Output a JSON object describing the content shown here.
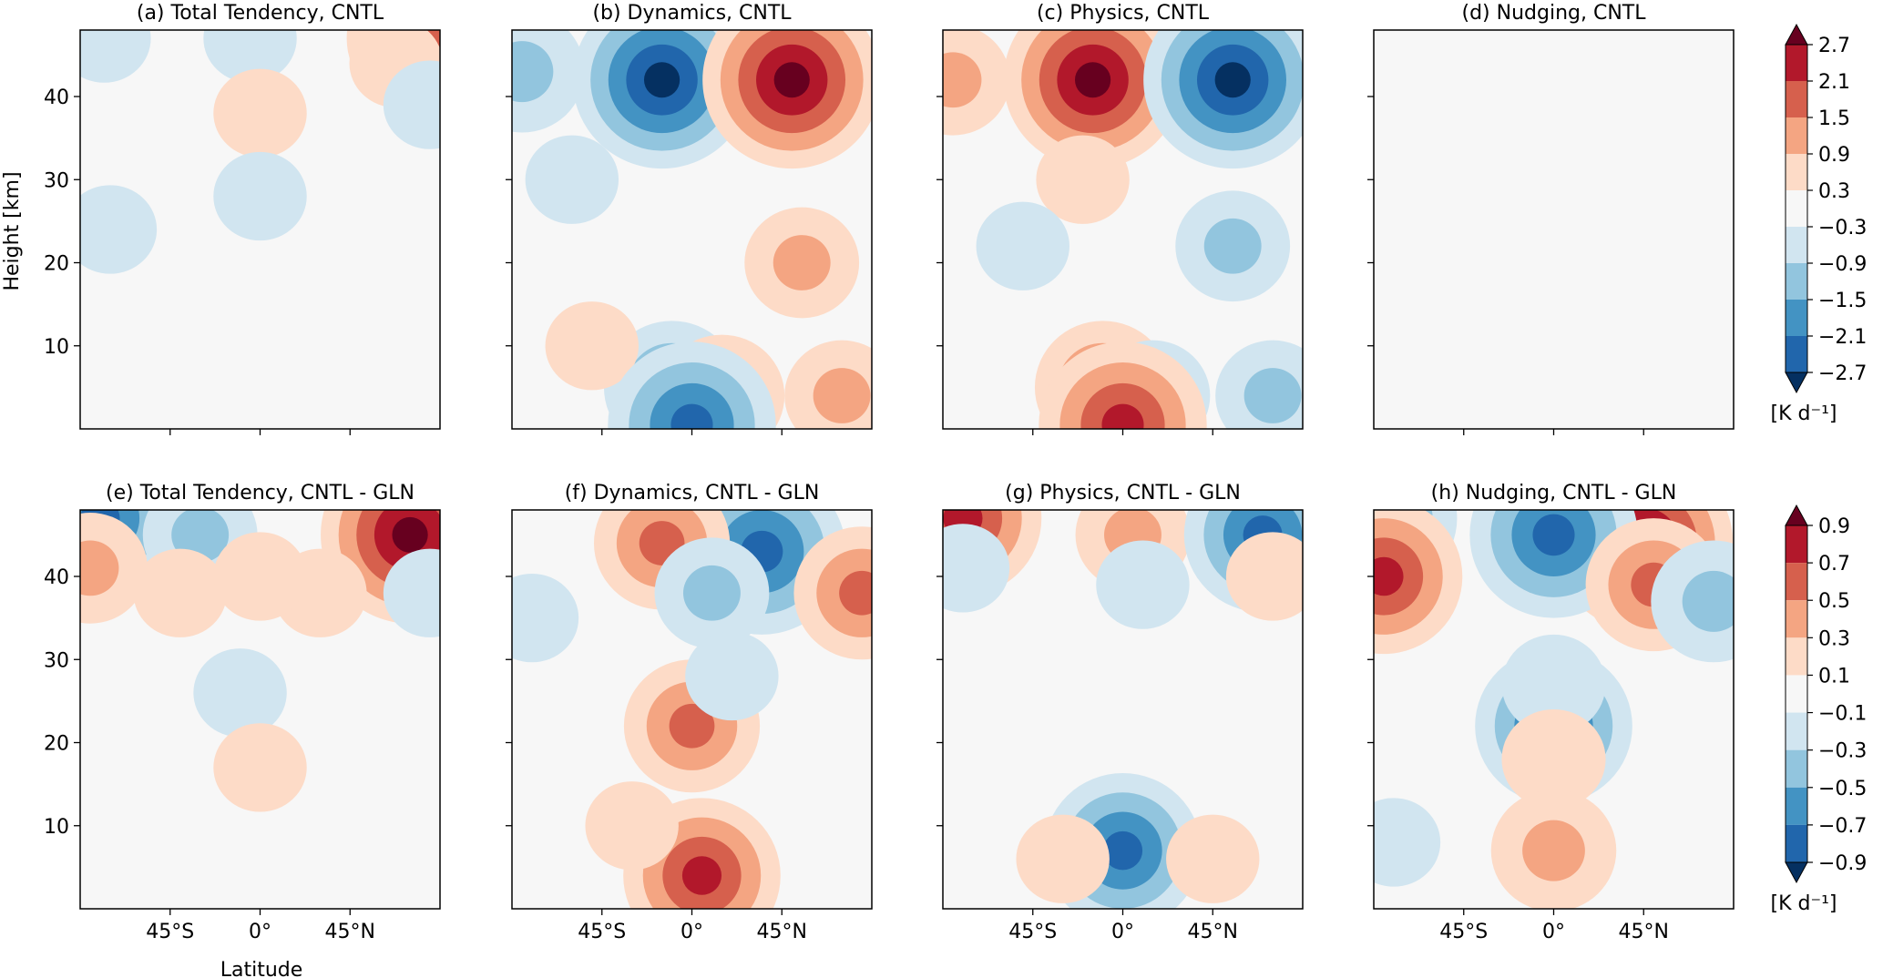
{
  "figure": {
    "ylabel": "Height [km]",
    "xlabel": "Latitude",
    "x_ticks": [
      "45°S",
      "0°",
      "45°N"
    ],
    "x_tick_values": [
      -45,
      0,
      45
    ],
    "y_ticks": [
      "10",
      "20",
      "30",
      "40"
    ],
    "y_tick_values": [
      10,
      20,
      30,
      40
    ],
    "xlim": [
      -90,
      90
    ],
    "ylim": [
      0,
      48
    ],
    "colormap": "RdBu_r (diverging blue-white-red)",
    "colors": [
      "#053061",
      "#2166ac",
      "#4393c3",
      "#92c5de",
      "#d1e5f0",
      "#f7f7f7",
      "#fddbc7",
      "#f4a582",
      "#d6604d",
      "#b2182b",
      "#67001f"
    ]
  },
  "chart_data": [
    {
      "type": "heatmap",
      "panel": "a",
      "title": "(a) Total Tendency, CNTL",
      "units": "[K d⁻¹]",
      "features": [
        {
          "lat": 80,
          "z": 47,
          "value": 2.1
        },
        {
          "lat": 68,
          "z": 44,
          "value": 0.6
        },
        {
          "lat": -78,
          "z": 47,
          "value": -0.6
        },
        {
          "lat": -5,
          "z": 47,
          "value": -0.6
        },
        {
          "lat": 85,
          "z": 39,
          "value": -0.6
        },
        {
          "lat": 0,
          "z": 38,
          "value": 0.6
        },
        {
          "lat": 0,
          "z": 28,
          "value": -0.6
        },
        {
          "lat": -75,
          "z": 24,
          "value": -0.6
        }
      ]
    },
    {
      "type": "heatmap",
      "panel": "b",
      "title": "(b) Dynamics, CNTL",
      "units": "[K d⁻¹]",
      "features": [
        {
          "lat": -15,
          "z": 42,
          "value": -3.0
        },
        {
          "lat": 50,
          "z": 42,
          "value": 3.0
        },
        {
          "lat": -85,
          "z": 43,
          "value": -1.5
        },
        {
          "lat": -60,
          "z": 30,
          "value": -0.6
        },
        {
          "lat": 55,
          "z": 20,
          "value": 1.2
        },
        {
          "lat": -10,
          "z": 5,
          "value": -1.8
        },
        {
          "lat": 15,
          "z": 4,
          "value": 1.5
        },
        {
          "lat": 75,
          "z": 4,
          "value": 1.2
        },
        {
          "lat": -50,
          "z": 10,
          "value": 0.6
        },
        {
          "lat": 0,
          "z": 0.5,
          "value": -2.7
        }
      ]
    },
    {
      "type": "heatmap",
      "panel": "c",
      "title": "(c) Physics, CNTL",
      "units": "[K d⁻¹]",
      "features": [
        {
          "lat": -15,
          "z": 42,
          "value": 3.0
        },
        {
          "lat": 55,
          "z": 42,
          "value": -3.0
        },
        {
          "lat": -85,
          "z": 42,
          "value": 1.2
        },
        {
          "lat": -20,
          "z": 30,
          "value": 0.6
        },
        {
          "lat": 55,
          "z": 22,
          "value": -1.2
        },
        {
          "lat": -50,
          "z": 22,
          "value": -0.6
        },
        {
          "lat": -10,
          "z": 5,
          "value": 1.8
        },
        {
          "lat": 15,
          "z": 4,
          "value": -1.2
        },
        {
          "lat": 75,
          "z": 4,
          "value": -1.2
        },
        {
          "lat": 0,
          "z": 0.5,
          "value": 2.7
        }
      ]
    },
    {
      "type": "heatmap",
      "panel": "d",
      "title": "(d) Nudging, CNTL",
      "units": "[K d⁻¹]",
      "features": []
    },
    {
      "type": "heatmap",
      "panel": "e",
      "title": "(e) Total Tendency, CNTL - GLN",
      "units": "[K d⁻¹]",
      "features": [
        {
          "lat": 75,
          "z": 45,
          "value": 1.0
        },
        {
          "lat": -80,
          "z": 47,
          "value": -0.8
        },
        {
          "lat": -30,
          "z": 45,
          "value": -0.4
        },
        {
          "lat": -85,
          "z": 41,
          "value": 0.4
        },
        {
          "lat": -40,
          "z": 38,
          "value": 0.2
        },
        {
          "lat": 30,
          "z": 38,
          "value": 0.2
        },
        {
          "lat": 0,
          "z": 40,
          "value": 0.2
        },
        {
          "lat": 85,
          "z": 38,
          "value": -0.2
        },
        {
          "lat": -10,
          "z": 26,
          "value": -0.2
        },
        {
          "lat": 0,
          "z": 17,
          "value": 0.2
        }
      ]
    },
    {
      "type": "heatmap",
      "panel": "f",
      "title": "(f) Dynamics, CNTL - GLN",
      "units": "[K d⁻¹]",
      "features": [
        {
          "lat": 35,
          "z": 43,
          "value": -0.9
        },
        {
          "lat": -15,
          "z": 44,
          "value": 0.6
        },
        {
          "lat": 85,
          "z": 38,
          "value": 0.6
        },
        {
          "lat": 10,
          "z": 38,
          "value": -0.4
        },
        {
          "lat": -80,
          "z": 35,
          "value": -0.2
        },
        {
          "lat": 0,
          "z": 22,
          "value": 0.6
        },
        {
          "lat": 5,
          "z": 4,
          "value": 0.8
        },
        {
          "lat": -30,
          "z": 10,
          "value": 0.2
        },
        {
          "lat": 20,
          "z": 28,
          "value": -0.2
        }
      ]
    },
    {
      "type": "heatmap",
      "panel": "g",
      "title": "(g) Physics, CNTL - GLN",
      "units": "[K d⁻¹]",
      "features": [
        {
          "lat": -80,
          "z": 47,
          "value": 0.8
        },
        {
          "lat": 5,
          "z": 45,
          "value": 0.4
        },
        {
          "lat": 70,
          "z": 45,
          "value": -0.8
        },
        {
          "lat": -80,
          "z": 41,
          "value": -0.2
        },
        {
          "lat": 10,
          "z": 39,
          "value": -0.2
        },
        {
          "lat": 75,
          "z": 40,
          "value": 0.2
        },
        {
          "lat": 0,
          "z": 7,
          "value": -0.8
        },
        {
          "lat": -30,
          "z": 6,
          "value": 0.2
        },
        {
          "lat": 45,
          "z": 6,
          "value": 0.2
        }
      ]
    },
    {
      "type": "heatmap",
      "panel": "h",
      "title": "(h) Nudging, CNTL - GLN",
      "units": "[K d⁻¹]",
      "features": [
        {
          "lat": 45,
          "z": 44,
          "value": 1.0
        },
        {
          "lat": 0,
          "z": 45,
          "value": -0.9
        },
        {
          "lat": -85,
          "z": 47,
          "value": -0.7
        },
        {
          "lat": -85,
          "z": 40,
          "value": 0.8
        },
        {
          "lat": 50,
          "z": 39,
          "value": 0.6
        },
        {
          "lat": 80,
          "z": 37,
          "value": -0.5
        },
        {
          "lat": 0,
          "z": 22,
          "value": -0.8
        },
        {
          "lat": 0,
          "z": 27,
          "value": -0.3
        },
        {
          "lat": 0,
          "z": 18,
          "value": 0.3
        },
        {
          "lat": 0,
          "z": 7,
          "value": 0.5
        },
        {
          "lat": -80,
          "z": 8,
          "value": -0.2
        }
      ]
    }
  ],
  "colorbars": [
    {
      "row": 1,
      "unit_label": "[K d⁻¹]",
      "levels": [
        -3.3,
        -2.7,
        -2.1,
        -1.5,
        -0.9,
        -0.3,
        0.3,
        0.9,
        1.5,
        2.1,
        2.7,
        3.3
      ],
      "tick_labels": [
        "2.7",
        "2.1",
        "1.5",
        "0.9",
        "0.3",
        "−0.3",
        "−0.9",
        "−1.5",
        "−2.1",
        "−2.7"
      ]
    },
    {
      "row": 2,
      "unit_label": "[K d⁻¹]",
      "levels": [
        -1.1,
        -0.9,
        -0.7,
        -0.5,
        -0.3,
        -0.1,
        0.1,
        0.3,
        0.5,
        0.7,
        0.9,
        1.1
      ],
      "tick_labels": [
        "0.9",
        "0.7",
        "0.5",
        "0.3",
        "0.1",
        "−0.1",
        "−0.3",
        "−0.5",
        "−0.7",
        "−0.9"
      ]
    }
  ]
}
